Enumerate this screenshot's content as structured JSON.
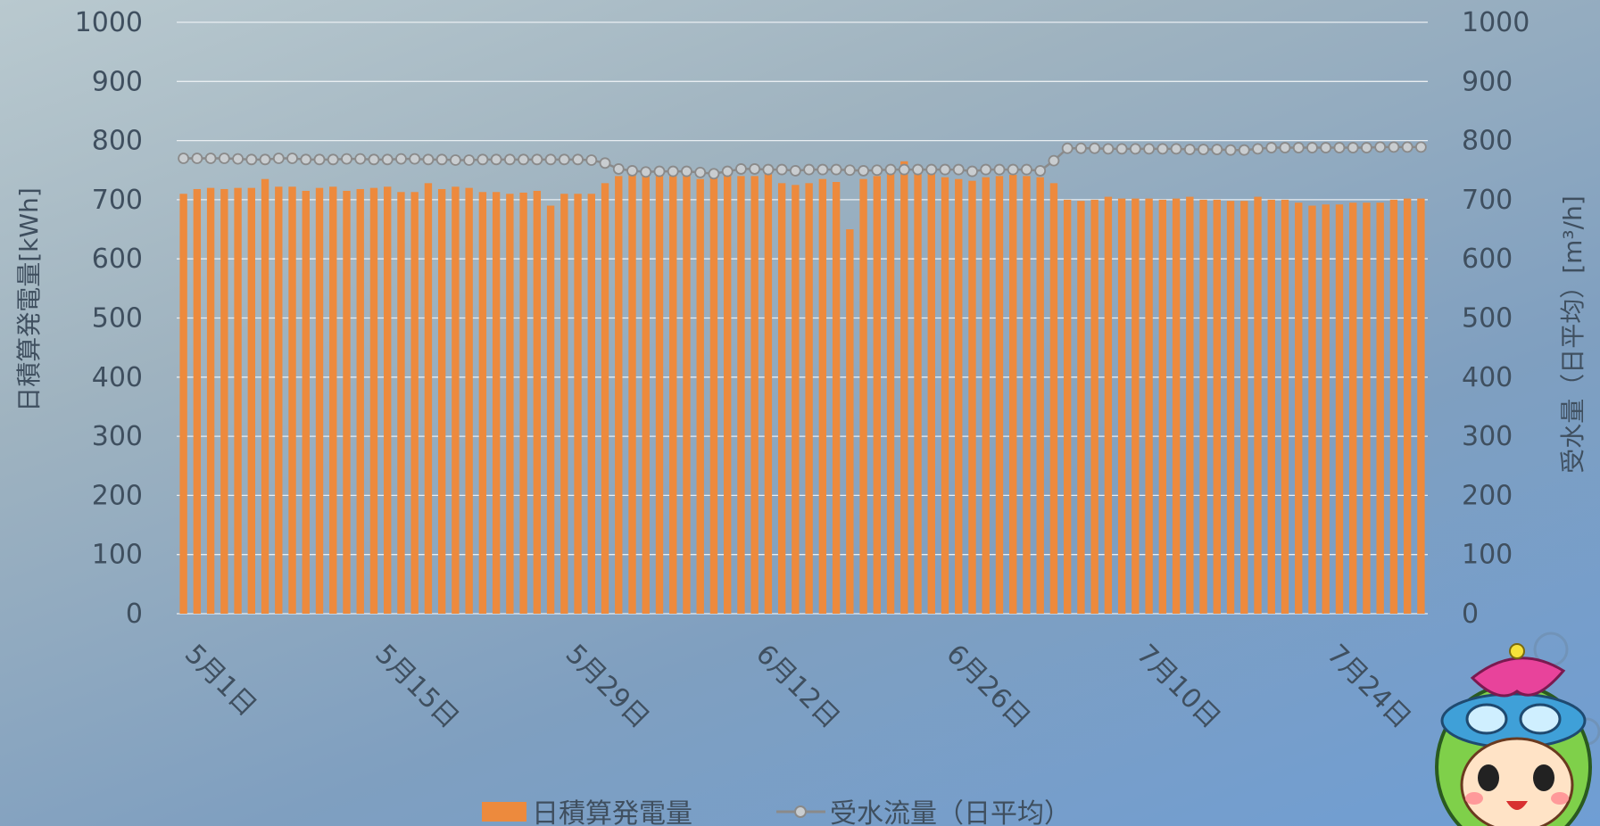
{
  "chart_data": {
    "type": "bar",
    "start_date": "2024-05-01",
    "days": 92,
    "x_tick_labels": [
      "5月1日",
      "5月15日",
      "5月29日",
      "6月12日",
      "6月26日",
      "7月10日",
      "7月24日"
    ],
    "y_ticks": [
      "0",
      "100",
      "200",
      "300",
      "400",
      "500",
      "600",
      "700",
      "800",
      "900",
      "1000"
    ],
    "ylim": [
      0,
      1000
    ],
    "y2lim": [
      0,
      1000
    ],
    "ylabel": "日積算発電量[kWh]",
    "y2label": "受水量（日平均）[m³/h]",
    "grid": true,
    "legend_position": "bottom",
    "series": [
      {
        "name": "日積算発電量",
        "type": "bar",
        "axis": "left",
        "color": "#ed8a3d",
        "values": [
          710,
          718,
          720,
          718,
          720,
          720,
          735,
          722,
          722,
          715,
          720,
          722,
          715,
          718,
          720,
          722,
          713,
          713,
          728,
          718,
          722,
          720,
          713,
          713,
          710,
          712,
          715,
          690,
          710,
          710,
          710,
          728,
          740,
          745,
          742,
          742,
          740,
          742,
          735,
          740,
          745,
          740,
          740,
          745,
          728,
          725,
          728,
          735,
          730,
          650,
          735,
          740,
          748,
          765,
          755,
          748,
          738,
          735,
          732,
          738,
          740,
          742,
          740,
          738,
          728,
          700,
          698,
          700,
          705,
          702,
          702,
          702,
          700,
          702,
          705,
          700,
          700,
          698,
          698,
          705,
          700,
          700,
          695,
          690,
          692,
          692,
          695,
          695,
          695,
          700,
          702,
          702
        ]
      },
      {
        "name": "受水流量（日平均）",
        "type": "line",
        "axis": "right",
        "color": "#8a8a8a",
        "values": [
          770,
          770,
          770,
          770,
          769,
          768,
          768,
          770,
          770,
          768,
          768,
          768,
          769,
          769,
          768,
          768,
          769,
          769,
          768,
          768,
          767,
          767,
          768,
          768,
          768,
          768,
          768,
          768,
          768,
          768,
          767,
          762,
          752,
          749,
          747,
          748,
          748,
          748,
          746,
          744,
          748,
          752,
          752,
          751,
          751,
          749,
          751,
          751,
          751,
          750,
          749,
          750,
          751,
          751,
          751,
          751,
          751,
          751,
          748,
          751,
          751,
          751,
          751,
          749,
          766,
          787,
          787,
          787,
          786,
          786,
          786,
          786,
          786,
          786,
          785,
          785,
          785,
          784,
          784,
          786,
          788,
          788,
          788,
          788,
          788,
          788,
          788,
          788,
          789,
          789,
          789,
          789
        ]
      }
    ],
    "legend": [
      {
        "label": "日積算発電量",
        "symbol": "bar"
      },
      {
        "label": "受水流量（日平均）",
        "symbol": "line-marker"
      }
    ]
  },
  "mascot_name": "mascot-illustration"
}
